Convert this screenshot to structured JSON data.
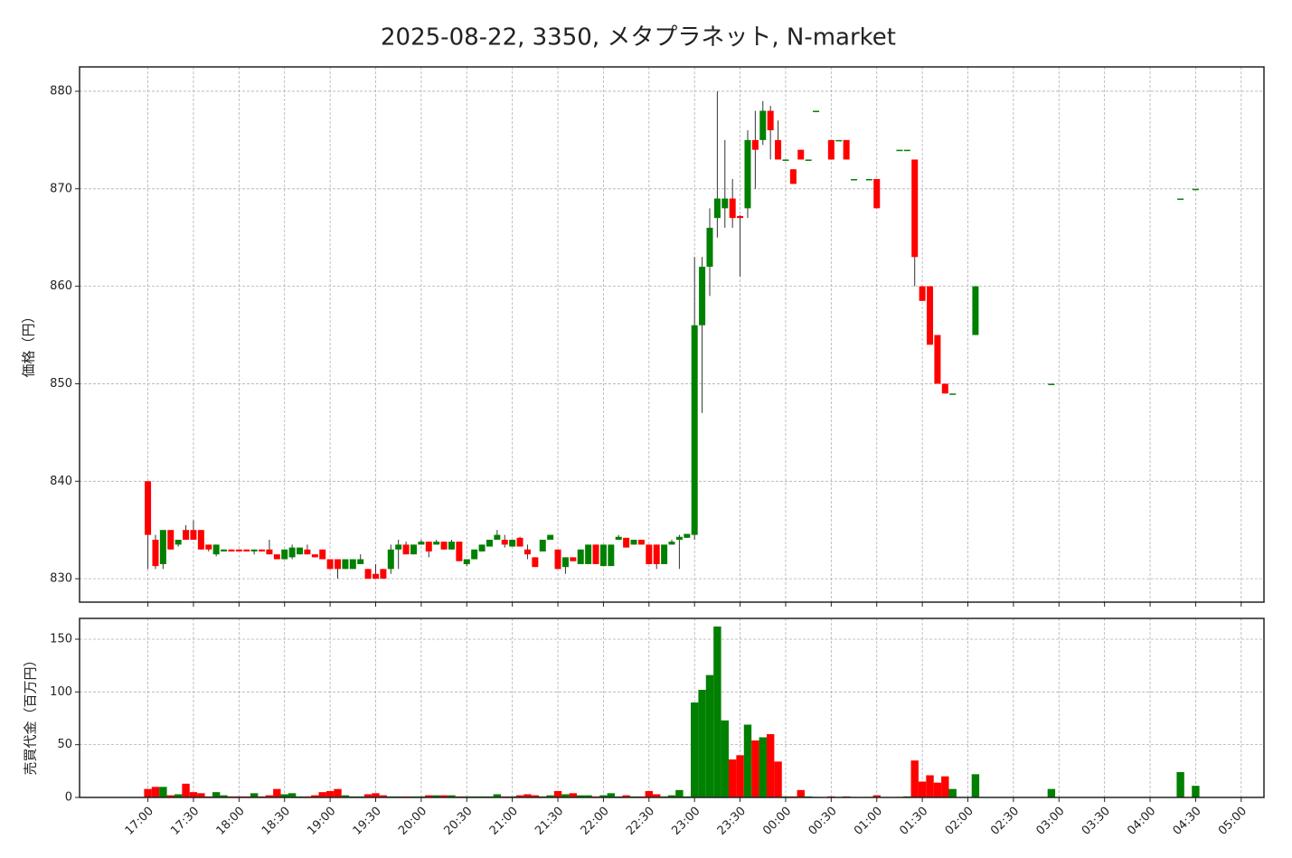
{
  "chart_data": [
    {
      "type": "candlestick",
      "title": "2025-08-22, 3350, メタプラネット, N-market",
      "ylabel": "価格（円）",
      "up_color": "#008000",
      "down_color": "#ff0000",
      "wick_color": "#333333",
      "ylim": [
        827.6,
        882.5
      ],
      "yticks": [
        830,
        840,
        850,
        860,
        870,
        880
      ],
      "grid": true,
      "x": [
        "17:00",
        "17:05",
        "17:10",
        "17:15",
        "17:20",
        "17:25",
        "17:30",
        "17:35",
        "17:40",
        "17:45",
        "17:50",
        "17:55",
        "18:00",
        "18:05",
        "18:10",
        "18:15",
        "18:20",
        "18:25",
        "18:30",
        "18:35",
        "18:40",
        "18:45",
        "18:50",
        "18:55",
        "19:00",
        "19:05",
        "19:10",
        "19:15",
        "19:20",
        "19:25",
        "19:30",
        "19:35",
        "19:40",
        "19:45",
        "19:50",
        "19:55",
        "20:00",
        "20:05",
        "20:10",
        "20:15",
        "20:20",
        "20:25",
        "20:30",
        "20:35",
        "20:40",
        "20:45",
        "20:50",
        "20:55",
        "21:00",
        "21:05",
        "21:10",
        "21:15",
        "21:20",
        "21:25",
        "21:30",
        "21:35",
        "21:40",
        "21:45",
        "21:50",
        "21:55",
        "22:00",
        "22:05",
        "22:10",
        "22:15",
        "22:20",
        "22:25",
        "22:30",
        "22:35",
        "22:40",
        "22:45",
        "22:50",
        "22:55",
        "23:00",
        "23:05",
        "23:10",
        "23:15",
        "23:20",
        "23:25",
        "23:30",
        "23:35",
        "23:40",
        "23:45",
        "23:50",
        "23:55",
        "00:00",
        "00:05",
        "00:10",
        "00:15",
        "00:20",
        "00:30",
        "00:35",
        "00:40",
        "00:45",
        "00:55",
        "01:00",
        "01:15",
        "01:20",
        "01:25",
        "01:30",
        "01:35",
        "01:40",
        "01:45",
        "01:50",
        "02:05",
        "02:55",
        "04:20",
        "04:30"
      ],
      "open": [
        840,
        834,
        831.5,
        835,
        833.5,
        835,
        835,
        835,
        833.5,
        832.5,
        832.8,
        833,
        833,
        833,
        832.8,
        833,
        833,
        832.5,
        832,
        832.2,
        832.5,
        833,
        832.5,
        833,
        832,
        832,
        831,
        831,
        831.5,
        831,
        830.5,
        831,
        831,
        833,
        833.5,
        832.5,
        833.5,
        833.8,
        833.5,
        833.8,
        833,
        833.8,
        831.5,
        832,
        832.8,
        833.3,
        834,
        834,
        833.3,
        834.2,
        833,
        832.2,
        832.8,
        834,
        833,
        831.2,
        832.2,
        831.5,
        831.5,
        833.5,
        831.3,
        831.3,
        834,
        834.2,
        833.5,
        834,
        833.5,
        833.5,
        831.5,
        833.5,
        834,
        834.2,
        834.5,
        856,
        862,
        867,
        868,
        869,
        867.2,
        868,
        875,
        875,
        878,
        875,
        873,
        872,
        874,
        873,
        878,
        875,
        875,
        875,
        871,
        871,
        871,
        874,
        874,
        873,
        860,
        860,
        855,
        850,
        849,
        855,
        850,
        869,
        870
      ],
      "high": [
        840,
        834.5,
        835,
        835,
        834,
        835.5,
        836,
        835,
        833.5,
        833.5,
        833,
        833,
        833,
        833,
        833,
        833,
        834,
        832.5,
        833,
        833.5,
        833.2,
        833.5,
        832.5,
        833,
        832,
        832,
        832,
        832,
        832.5,
        831,
        831.5,
        831,
        833.5,
        834,
        833.8,
        833.5,
        834,
        833.8,
        834,
        833.8,
        834,
        833.8,
        832,
        833,
        833.5,
        834,
        835,
        834.5,
        834,
        834.3,
        833.5,
        832.2,
        834,
        834.5,
        833,
        832.2,
        832.2,
        833,
        833.5,
        833.5,
        833.5,
        833.5,
        834.5,
        834.2,
        834,
        834,
        833.5,
        833.5,
        833.5,
        834,
        834.5,
        834.6,
        863,
        863,
        868,
        880,
        875,
        871,
        867.3,
        876,
        878,
        879,
        878.5,
        877,
        873,
        872,
        874,
        873,
        878,
        875,
        875,
        875,
        871,
        871,
        871,
        874,
        874,
        873,
        860,
        860,
        855,
        850,
        849,
        860,
        850,
        869,
        870
      ],
      "low": [
        831,
        831,
        831,
        833,
        833.3,
        834,
        834,
        833,
        832.8,
        832.3,
        832.8,
        832.8,
        832.8,
        832.8,
        832.5,
        832.8,
        832.5,
        832,
        832,
        832,
        832.5,
        832.5,
        832.2,
        832,
        831,
        830,
        831,
        831,
        831.5,
        830,
        830,
        830,
        830.5,
        831,
        832.5,
        832.5,
        833.5,
        832.2,
        833.5,
        833,
        833,
        831.8,
        831.3,
        832,
        832.8,
        833.3,
        834,
        833.2,
        833.3,
        833.3,
        832,
        831.2,
        832.8,
        834,
        831,
        830.5,
        831.8,
        831.5,
        831.5,
        831.5,
        831.3,
        831.3,
        834,
        833.2,
        833.5,
        833.5,
        831.5,
        831,
        831.5,
        833.5,
        831,
        834.2,
        834,
        847,
        859,
        865,
        866,
        866,
        861,
        867,
        870,
        874.5,
        873,
        873,
        873,
        870.5,
        873,
        873,
        878,
        873,
        875,
        873,
        871,
        871,
        868,
        874,
        874,
        860,
        858.5,
        854,
        850,
        849,
        849,
        855,
        850,
        869,
        870
      ],
      "close": [
        834.5,
        831.3,
        835,
        833,
        834,
        834,
        834,
        833,
        833,
        833.5,
        833,
        832.8,
        832.8,
        832.8,
        833,
        832.8,
        832.5,
        832,
        833,
        833.2,
        833.2,
        832.5,
        832.2,
        832,
        831,
        831,
        832,
        832,
        832,
        830,
        830,
        830,
        833,
        833.5,
        832.5,
        833.5,
        833.8,
        832.8,
        833.8,
        833,
        833.8,
        831.8,
        832,
        833,
        833.5,
        834,
        834.5,
        833.5,
        834,
        833.3,
        832.5,
        831.2,
        834,
        834.5,
        831,
        832.2,
        831.8,
        833,
        833.5,
        831.5,
        833.5,
        833.5,
        834.3,
        833.2,
        834,
        833.5,
        831.5,
        831.5,
        833.5,
        833.8,
        834.3,
        834.6,
        856,
        862,
        866,
        869,
        869,
        867,
        867,
        875,
        874,
        878,
        876,
        873,
        873,
        870.5,
        873,
        873,
        878,
        873,
        875,
        873,
        871,
        871,
        868,
        874,
        874,
        863,
        858.5,
        854,
        850,
        849,
        849,
        860,
        850,
        869,
        870
      ]
    },
    {
      "type": "bar",
      "ylabel": "売買代金（百万円）",
      "ylim": [
        0,
        169.7
      ],
      "yticks": [
        0,
        50,
        100,
        150
      ],
      "grid": true,
      "xlim": [
        "16:15",
        "05:15"
      ],
      "xticks": [
        "17:00",
        "17:30",
        "18:00",
        "18:30",
        "19:00",
        "19:30",
        "20:00",
        "20:30",
        "21:00",
        "21:30",
        "22:00",
        "22:30",
        "23:00",
        "23:30",
        "00:00",
        "00:30",
        "01:00",
        "01:30",
        "02:00",
        "02:30",
        "03:00",
        "03:30",
        "04:00",
        "04:30",
        "05:00"
      ],
      "values": [
        8,
        10,
        10,
        2,
        3,
        13,
        5,
        4,
        1,
        5,
        2,
        1,
        1,
        1,
        4,
        1,
        2,
        8,
        3,
        4,
        1,
        1,
        2,
        5,
        6,
        8,
        2,
        1,
        1,
        3,
        4,
        2,
        1,
        1,
        1,
        1,
        1,
        2,
        2,
        2,
        2,
        1,
        1,
        1,
        1,
        1,
        3,
        1,
        1,
        2,
        3,
        2,
        1,
        2,
        6,
        3,
        4,
        2,
        2,
        1,
        2,
        4,
        1,
        2,
        1,
        1,
        6,
        3,
        1,
        2,
        7,
        1,
        90,
        102,
        116,
        162,
        73,
        36,
        40,
        69,
        54,
        57,
        60,
        34,
        1,
        1,
        7,
        1,
        0.5,
        1,
        0.5,
        1,
        0.5,
        0.5,
        2,
        0.5,
        1,
        35,
        15,
        21,
        14,
        20,
        8,
        22,
        8,
        24,
        11
      ]
    }
  ]
}
